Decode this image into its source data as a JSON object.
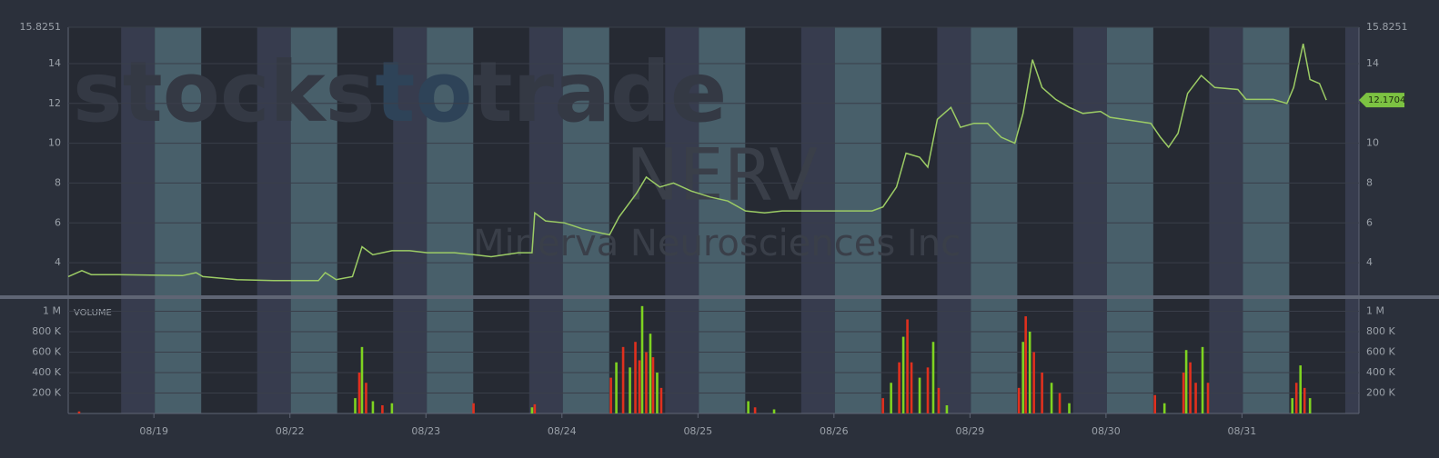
{
  "chart_data": [
    {
      "type": "line",
      "title": "NERV",
      "subtitle": "Minerva Neurosciences Inc",
      "brand": [
        "stocks",
        "to",
        "trade"
      ],
      "color": "#9ccc65",
      "grid": true,
      "xlim": [
        -0.63,
        8.86
      ],
      "ylim": [
        2.36,
        15.8251
      ],
      "yticks": [
        4,
        6,
        8,
        10,
        12,
        14,
        15.8251
      ],
      "last_value": 12.1704,
      "x": [
        -0.63,
        -0.53,
        -0.46,
        -0.26,
        0.21,
        0.31,
        0.36,
        0.61,
        0.88,
        1.21,
        1.26,
        1.34,
        1.46,
        1.53,
        1.61,
        1.75,
        1.88,
        2.01,
        2.21,
        2.35,
        2.48,
        2.68,
        2.78,
        2.8,
        2.88,
        3.02,
        3.15,
        3.28,
        3.35,
        3.42,
        3.55,
        3.62,
        3.72,
        3.82,
        3.95,
        4.09,
        4.22,
        4.35,
        4.49,
        4.62,
        4.89,
        5.16,
        5.28,
        5.36,
        5.46,
        5.53,
        5.63,
        5.69,
        5.76,
        5.86,
        5.93,
        6.03,
        6.13,
        6.23,
        6.33,
        6.39,
        6.46,
        6.53,
        6.63,
        6.73,
        6.83,
        6.96,
        7.03,
        7.23,
        7.33,
        7.4,
        7.46,
        7.53,
        7.6,
        7.7,
        7.8,
        7.97,
        8.03,
        8.23,
        8.33,
        8.38,
        8.45,
        8.5,
        8.57,
        8.62
      ],
      "values": [
        3.3,
        3.6,
        3.4,
        3.4,
        3.35,
        3.5,
        3.3,
        3.15,
        3.1,
        3.1,
        3.5,
        3.15,
        3.3,
        4.8,
        4.4,
        4.6,
        4.6,
        4.5,
        4.5,
        4.4,
        4.3,
        4.5,
        4.5,
        6.5,
        6.1,
        6.0,
        5.7,
        5.5,
        5.4,
        6.3,
        7.5,
        8.3,
        7.8,
        8.0,
        7.6,
        7.3,
        7.1,
        6.6,
        6.5,
        6.6,
        6.6,
        6.6,
        6.6,
        6.8,
        7.8,
        9.5,
        9.3,
        8.8,
        11.2,
        11.8,
        10.8,
        11.0,
        11.0,
        10.3,
        10.0,
        11.5,
        14.2,
        12.8,
        12.2,
        11.8,
        11.5,
        11.6,
        11.3,
        11.1,
        11.0,
        10.3,
        9.8,
        10.5,
        12.5,
        13.4,
        12.8,
        12.7,
        12.2,
        12.2,
        12.0,
        12.8,
        15.0,
        13.2,
        13.0,
        12.17
      ]
    },
    {
      "type": "bar",
      "title": "VOLUME",
      "grid": true,
      "xlim": [
        -0.63,
        8.86
      ],
      "ylim": [
        0,
        1084000
      ],
      "yticks": [
        {
          "value": 200000,
          "label": "200 K"
        },
        {
          "value": 400000,
          "label": "400 K"
        },
        {
          "value": 600000,
          "label": "600 K"
        },
        {
          "value": 800000,
          "label": "800 K"
        },
        {
          "value": 1000000,
          "label": "1 M"
        }
      ],
      "xticks": [
        {
          "value": 0,
          "label": "08/19"
        },
        {
          "value": 1,
          "label": "08/22"
        },
        {
          "value": 2,
          "label": "08/23"
        },
        {
          "value": 3,
          "label": "08/24"
        },
        {
          "value": 4,
          "label": "08/25"
        },
        {
          "value": 5,
          "label": "08/26"
        },
        {
          "value": 6,
          "label": "08/29"
        },
        {
          "value": 7,
          "label": "08/30"
        },
        {
          "value": 8,
          "label": "08/31"
        }
      ],
      "x": [
        -0.55,
        1.48,
        1.51,
        1.53,
        1.56,
        1.61,
        1.68,
        1.75,
        2.35,
        2.78,
        2.8,
        3.36,
        3.4,
        3.45,
        3.5,
        3.54,
        3.57,
        3.59,
        3.62,
        3.65,
        3.67,
        3.7,
        3.73,
        4.37,
        4.42,
        4.56,
        5.36,
        5.42,
        5.48,
        5.51,
        5.54,
        5.57,
        5.63,
        5.69,
        5.73,
        5.77,
        5.83,
        6.36,
        6.39,
        6.41,
        6.44,
        6.47,
        6.53,
        6.6,
        6.66,
        6.73,
        7.36,
        7.43,
        7.57,
        7.59,
        7.62,
        7.66,
        7.71,
        7.75,
        8.37,
        8.4,
        8.43,
        8.46,
        8.5
      ],
      "values": [
        20000,
        150000,
        400000,
        650000,
        300000,
        120000,
        80000,
        100000,
        100000,
        60000,
        90000,
        350000,
        500000,
        650000,
        450000,
        700000,
        520000,
        1050000,
        600000,
        780000,
        550000,
        400000,
        250000,
        120000,
        60000,
        40000,
        150000,
        300000,
        500000,
        750000,
        920000,
        500000,
        350000,
        450000,
        700000,
        250000,
        80000,
        250000,
        700000,
        950000,
        800000,
        600000,
        400000,
        300000,
        200000,
        100000,
        180000,
        100000,
        400000,
        620000,
        500000,
        300000,
        650000,
        300000,
        150000,
        300000,
        470000,
        250000,
        150000
      ],
      "colors": [
        "#e0301e",
        "#7ed321",
        "#e0301e",
        "#7ed321",
        "#e0301e",
        "#7ed321",
        "#e0301e",
        "#7ed321",
        "#e0301e",
        "#7ed321",
        "#e0301e",
        "#e0301e",
        "#7ed321",
        "#e0301e",
        "#7ed321",
        "#e0301e",
        "#e0301e",
        "#7ed321",
        "#e0301e",
        "#7ed321",
        "#e0301e",
        "#7ed321",
        "#e0301e",
        "#7ed321",
        "#e0301e",
        "#7ed321",
        "#e0301e",
        "#7ed321",
        "#e0301e",
        "#7ed321",
        "#e0301e",
        "#e0301e",
        "#7ed321",
        "#e0301e",
        "#7ed321",
        "#e0301e",
        "#7ed321",
        "#e0301e",
        "#7ed321",
        "#e0301e",
        "#7ed321",
        "#e0301e",
        "#e0301e",
        "#7ed321",
        "#e0301e",
        "#7ed321",
        "#e0301e",
        "#7ed321",
        "#e0301e",
        "#7ed321",
        "#e0301e",
        "#e0301e",
        "#7ed321",
        "#e0301e",
        "#7ed321",
        "#e0301e",
        "#7ed321",
        "#e0301e",
        "#7ed321"
      ]
    }
  ]
}
